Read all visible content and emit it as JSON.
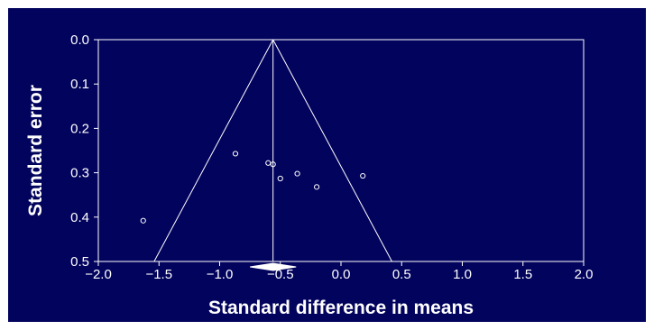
{
  "colors": {
    "background": "#02035d",
    "foreground": "#ffffff"
  },
  "chart_data": {
    "type": "scatter",
    "title": "",
    "xlabel": "Standard difference in means",
    "ylabel": "Standard error",
    "xlim": [
      -2.0,
      2.0
    ],
    "ylim": [
      0.0,
      0.5
    ],
    "y_inverted": true,
    "grid": false,
    "x_ticks": [
      -2.0,
      -1.5,
      -1.0,
      -0.5,
      0.0,
      0.5,
      1.0,
      1.5,
      2.0
    ],
    "x_tick_labels": [
      "−2.0",
      "−1.5",
      "−1.0",
      "−0.5",
      "0.0",
      "0.5",
      "1.0",
      "1.5",
      "2.0"
    ],
    "y_ticks": [
      0.0,
      0.1,
      0.2,
      0.3,
      0.4,
      0.5
    ],
    "y_tick_labels": [
      "0.0",
      "0.1",
      "0.2",
      "0.3",
      "0.4",
      "0.5"
    ],
    "points": [
      {
        "x": -1.63,
        "y": 0.408
      },
      {
        "x": -0.87,
        "y": 0.257
      },
      {
        "x": -0.6,
        "y": 0.278
      },
      {
        "x": -0.56,
        "y": 0.281
      },
      {
        "x": -0.5,
        "y": 0.313
      },
      {
        "x": -0.36,
        "y": 0.302
      },
      {
        "x": -0.2,
        "y": 0.332
      },
      {
        "x": 0.18,
        "y": 0.307
      }
    ],
    "funnel": {
      "center": -0.56,
      "half_width_per_se": 1.96,
      "se_max": 0.5
    },
    "summary_diamond": {
      "estimate": -0.56,
      "lower": -0.75,
      "upper": -0.37
    }
  }
}
